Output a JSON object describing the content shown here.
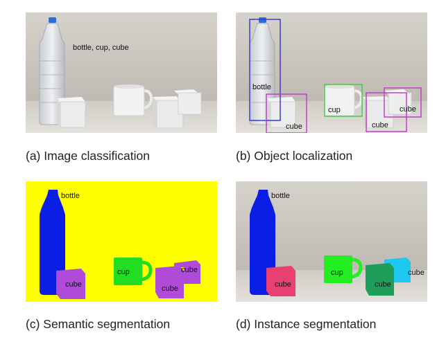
{
  "panels": {
    "a": {
      "caption": "(a) Image classification",
      "label": "bottle, cup, cube"
    },
    "b": {
      "caption": "(b) Object localization",
      "labels": {
        "bottle": "bottle",
        "cup": "cup",
        "cube1": "cube",
        "cube2": "cube",
        "cube3": "cube"
      }
    },
    "c": {
      "caption": "(c) Semantic segmentation",
      "labels": {
        "bottle": "bottle",
        "cup": "cup",
        "cube1": "cube",
        "cube2": "cube",
        "cube3": "cube"
      }
    },
    "d": {
      "caption": "(d) Instance segmentation",
      "labels": {
        "bottle": "bottle",
        "cup": "cup",
        "cube1": "cube",
        "cube2": "cube",
        "cube3": "cube"
      }
    }
  },
  "colors": {
    "box_bottle": "#3a3ad8",
    "box_cube": "#c040c8",
    "box_cup": "#44cc44",
    "semantic_background": "#ffff00",
    "semantic_bottle": "#0a1ee6",
    "semantic_cup": "#22dd22",
    "semantic_cube": "#b04ad8",
    "instance_bottle": "#0a1ee6",
    "instance_cup": "#22ee22",
    "instance_cube1": "#e84070",
    "instance_cube2": "#1e9e5a",
    "instance_cube3": "#1ec8f0"
  }
}
